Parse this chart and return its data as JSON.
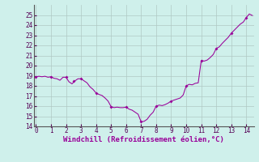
{
  "x": [
    0,
    0.2,
    0.4,
    0.6,
    0.8,
    1.0,
    1.2,
    1.4,
    1.6,
    1.8,
    2.0,
    2.2,
    2.4,
    2.6,
    2.8,
    3.0,
    3.2,
    3.4,
    3.6,
    3.8,
    4.0,
    4.2,
    4.4,
    4.6,
    4.8,
    5.0,
    5.2,
    5.4,
    5.6,
    5.8,
    6.0,
    6.2,
    6.4,
    6.6,
    6.8,
    7.0,
    7.2,
    7.4,
    7.6,
    7.8,
    8.0,
    8.2,
    8.4,
    8.6,
    8.8,
    9.0,
    9.2,
    9.4,
    9.6,
    9.8,
    10.0,
    10.2,
    10.4,
    10.6,
    10.8,
    11.0,
    11.2,
    11.4,
    11.6,
    11.8,
    12.0,
    12.2,
    12.4,
    12.6,
    12.8,
    13.0,
    13.2,
    13.4,
    13.6,
    13.8,
    14.0,
    14.2,
    14.4
  ],
  "y": [
    18.9,
    18.95,
    18.9,
    18.95,
    18.85,
    18.9,
    18.75,
    18.7,
    18.55,
    18.85,
    18.85,
    18.4,
    18.2,
    18.5,
    18.7,
    18.7,
    18.5,
    18.3,
    17.9,
    17.65,
    17.3,
    17.15,
    17.05,
    16.8,
    16.5,
    15.95,
    15.85,
    15.9,
    15.85,
    15.85,
    15.9,
    15.7,
    15.6,
    15.4,
    15.2,
    14.45,
    14.5,
    14.7,
    15.1,
    15.4,
    16.0,
    16.1,
    16.05,
    16.15,
    16.3,
    16.5,
    16.6,
    16.7,
    16.8,
    17.1,
    18.0,
    18.15,
    18.1,
    18.25,
    18.3,
    20.5,
    20.45,
    20.55,
    20.8,
    21.1,
    21.7,
    21.85,
    22.2,
    22.5,
    22.8,
    23.2,
    23.5,
    23.8,
    24.1,
    24.3,
    24.75,
    25.1,
    24.95
  ],
  "marker_x": [
    0,
    1.0,
    2.0,
    2.5,
    3.0,
    4.0,
    5.0,
    6.0,
    7.0,
    8.0,
    9.0,
    10.0,
    11.0,
    12.0,
    13.0,
    14.0
  ],
  "marker_y": [
    18.9,
    18.9,
    18.85,
    18.5,
    18.7,
    17.3,
    15.95,
    15.9,
    14.45,
    16.0,
    16.5,
    18.0,
    20.5,
    21.7,
    23.2,
    24.75
  ],
  "line_color": "#990099",
  "marker_color": "#990099",
  "bg_color": "#cff0eb",
  "grid_color": "#b0c8c4",
  "xlabel": "Windchill (Refroidissement éolien,°C)",
  "xlabel_color": "#990099",
  "xlim": [
    -0.15,
    14.5
  ],
  "ylim": [
    14,
    26
  ],
  "xticks": [
    0,
    1,
    2,
    3,
    4,
    5,
    6,
    7,
    8,
    9,
    10,
    11,
    12,
    13,
    14
  ],
  "yticks": [
    14,
    15,
    16,
    17,
    18,
    19,
    20,
    21,
    22,
    23,
    24,
    25
  ],
  "tick_fontsize": 5.5,
  "xlabel_fontsize": 6.5
}
